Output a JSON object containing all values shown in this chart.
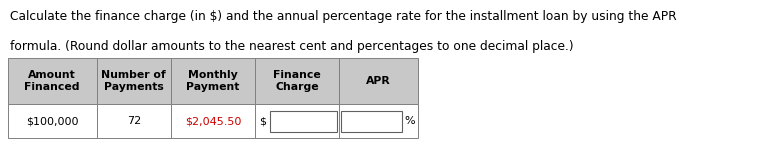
{
  "title_line1": "Calculate the finance charge (in $) and the annual percentage rate for the installment loan by using the APR",
  "title_line2": "formula. (Round dollar amounts to the nearest cent and percentages to one decimal place.)",
  "col_headers": [
    "Amount\nFinanced",
    "Number of\nPayments",
    "Monthly\nPayment",
    "Finance\nCharge",
    "APR"
  ],
  "row_data": [
    "$100,000",
    "72",
    "$2,045.50",
    "$",
    "%"
  ],
  "bg_color": "#ffffff",
  "header_bg": "#c8c8c8",
  "apr_header_bg": "#c8c8c8",
  "cell_bg": "#ffffff",
  "border_color": "#808080",
  "text_color": "#000000",
  "title_fontsize": 8.8,
  "cell_fontsize": 8.0,
  "header_fontsize": 7.8,
  "input_box_color": "#f5f5f5",
  "monthly_payment_color": "#cc0000",
  "fig_width": 7.58,
  "fig_height": 1.44,
  "dpi": 100
}
